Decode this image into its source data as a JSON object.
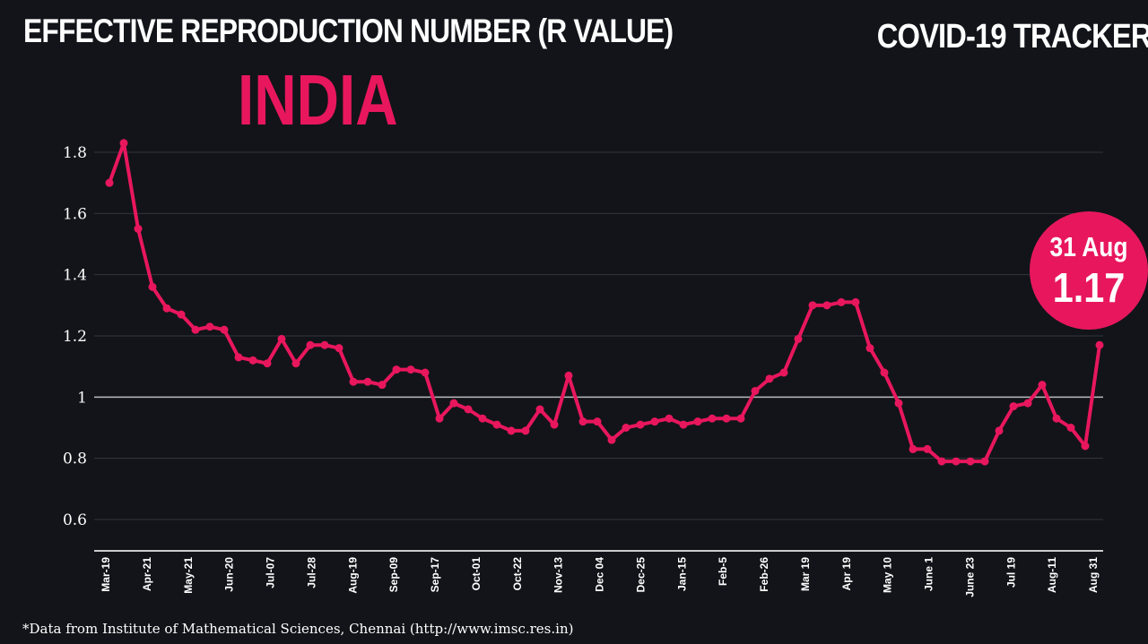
{
  "header": {
    "title": "EFFECTIVE REPRODUCTION NUMBER (R VALUE)",
    "brand": "COVID-19 TRACKER",
    "country": "INDIA"
  },
  "callout": {
    "date": "31 Aug",
    "value": "1.17"
  },
  "footer": {
    "note": "*Data from Institute of Mathematical Sciences, Chennai (http://www.imsc.res.in)"
  },
  "chart_data": {
    "type": "line",
    "title": "EFFECTIVE REPRODUCTION NUMBER (R VALUE)",
    "xlabel": "",
    "ylabel": "",
    "ylim": [
      0.5,
      1.9
    ],
    "yticks": [
      "1.8",
      "1.6",
      "1.4",
      "1.2",
      "1",
      "0.8",
      "0.6"
    ],
    "ytick_values": [
      1.8,
      1.6,
      1.4,
      1.2,
      1.0,
      0.8,
      0.6
    ],
    "xticks": [
      "Mar-19",
      "Apr-21",
      "May-21",
      "Jun-20",
      "Jul-07",
      "Jul-28",
      "Aug-19",
      "Sep-09",
      "Sep-17",
      "Oct-01",
      "Oct-22",
      "Nov-13",
      "Dec 04",
      "Dec-25",
      "Jan-15",
      "Feb-5",
      "Feb-26",
      "Mar 19",
      "Apr 19",
      "May 10",
      "June 1",
      "June 23",
      "Jul 19",
      "Aug-11",
      "Aug 31"
    ],
    "grid": true,
    "reference_line": 1.0,
    "line_color": "#e8175d",
    "values": [
      1.7,
      1.83,
      1.55,
      1.36,
      1.29,
      1.27,
      1.22,
      1.23,
      1.22,
      1.13,
      1.12,
      1.11,
      1.19,
      1.11,
      1.17,
      1.17,
      1.16,
      1.05,
      1.05,
      1.04,
      1.09,
      1.09,
      1.08,
      0.93,
      0.98,
      0.96,
      0.93,
      0.91,
      0.89,
      0.89,
      0.96,
      0.91,
      1.07,
      0.92,
      0.92,
      0.86,
      0.9,
      0.91,
      0.92,
      0.93,
      0.91,
      0.92,
      0.93,
      0.93,
      0.93,
      1.02,
      1.06,
      1.08,
      1.19,
      1.3,
      1.3,
      1.31,
      1.31,
      1.16,
      1.08,
      0.98,
      0.83,
      0.83,
      0.79,
      0.79,
      0.79,
      0.79,
      0.89,
      0.97,
      0.98,
      1.04,
      0.93,
      0.9,
      0.84,
      1.17
    ]
  }
}
